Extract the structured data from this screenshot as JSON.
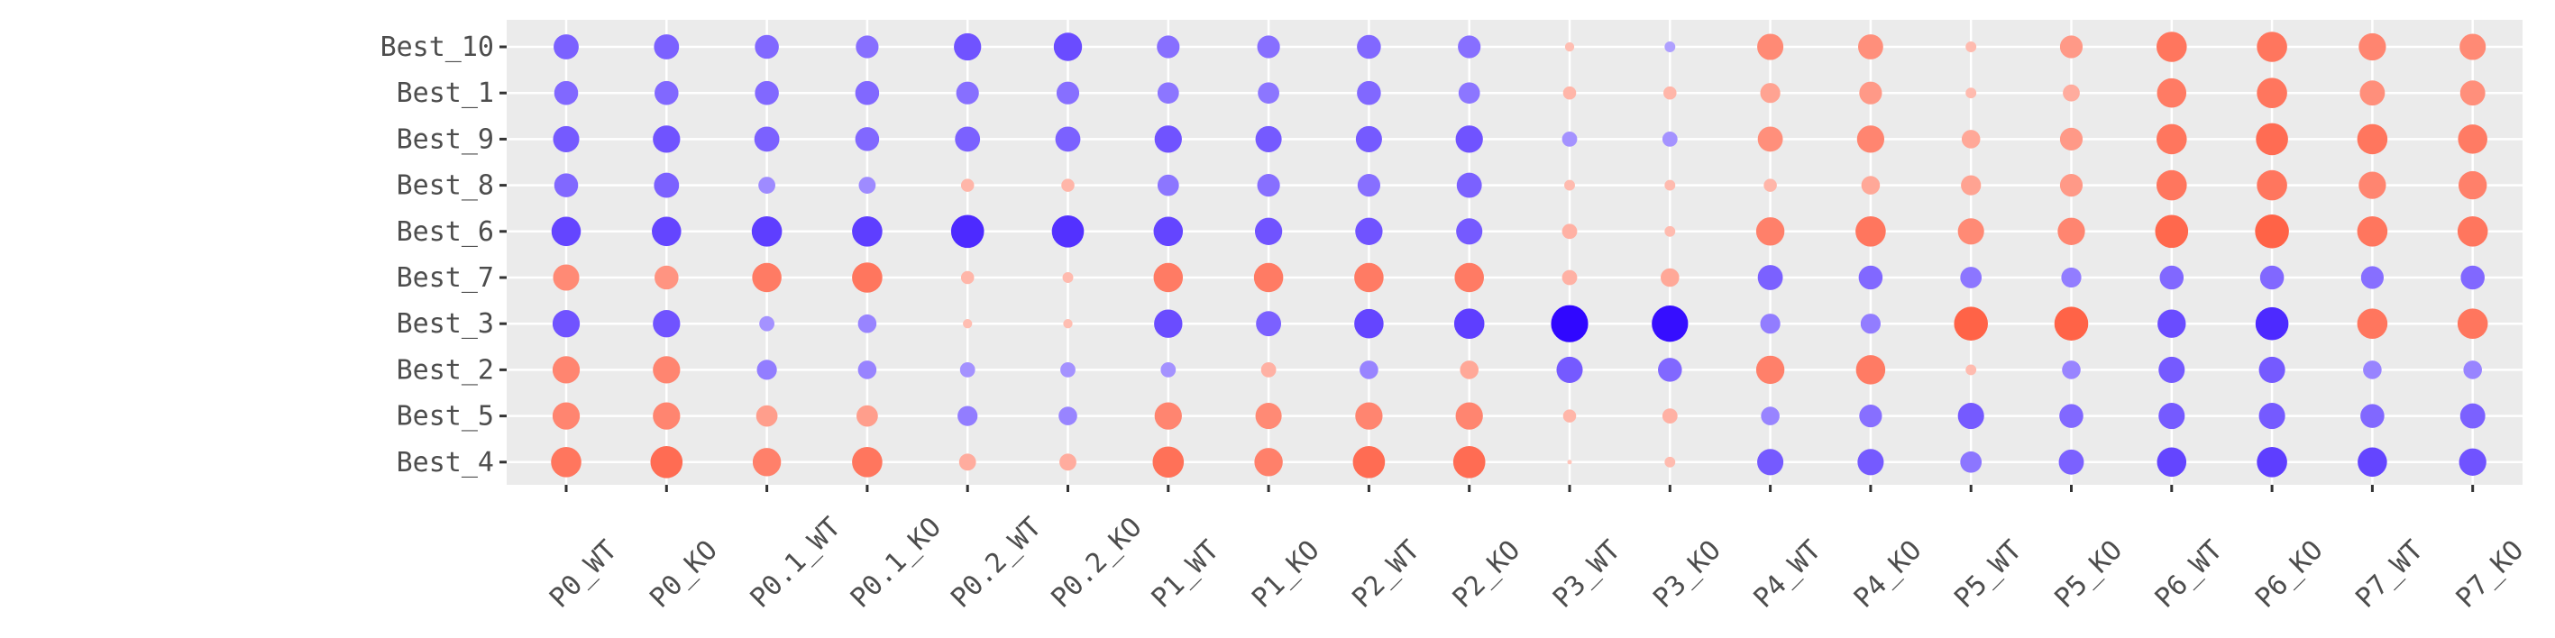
{
  "chart_data": {
    "type": "dot-matrix",
    "title": "",
    "xlabel": "",
    "ylabel": "",
    "x_categories": [
      "P0_WT",
      "P0_KO",
      "P0.1_WT",
      "P0.1_KO",
      "P0.2_WT",
      "P0.2_KO",
      "P1_WT",
      "P1_KO",
      "P2_WT",
      "P2_KO",
      "P3_WT",
      "P3_KO",
      "P4_WT",
      "P4_KO",
      "P5_WT",
      "P5_KO",
      "P6_WT",
      "P6_KO",
      "P7_WT",
      "P7_KO"
    ],
    "y_categories": [
      "Best_10",
      "Best_1",
      "Best_9",
      "Best_8",
      "Best_6",
      "Best_7",
      "Best_3",
      "Best_2",
      "Best_5",
      "Best_4"
    ],
    "color_scale": {
      "low": "#2a00ff",
      "mid": "#ffffff",
      "high": "#ff4a2a",
      "domain": [
        -2.5,
        0,
        2.5
      ]
    },
    "size_note": "dot size encodes magnitude of value",
    "values": [
      [
        -1.1,
        -1.1,
        -1.0,
        -0.9,
        -1.3,
        -1.4,
        -0.9,
        -0.9,
        -1.0,
        -0.9,
        0.15,
        -0.2,
        1.2,
        1.1,
        0.2,
        0.9,
        1.6,
        1.6,
        1.3,
        1.2
      ],
      [
        -1.0,
        -1.0,
        -1.0,
        -1.0,
        -0.9,
        -0.9,
        -0.8,
        -0.8,
        -1.0,
        -0.8,
        0.3,
        0.3,
        0.7,
        0.9,
        0.2,
        0.5,
        1.5,
        1.6,
        1.1,
        1.1
      ],
      [
        -1.2,
        -1.3,
        -1.1,
        -1.0,
        -1.1,
        -1.1,
        -1.3,
        -1.2,
        -1.2,
        -1.3,
        -0.4,
        -0.4,
        1.1,
        1.3,
        0.6,
        0.9,
        1.6,
        1.8,
        1.6,
        1.5
      ],
      [
        -1.0,
        -1.1,
        -0.5,
        -0.5,
        0.3,
        0.3,
        -0.8,
        -0.9,
        -0.9,
        -1.1,
        0.2,
        0.2,
        0.3,
        0.6,
        0.7,
        0.9,
        1.6,
        1.6,
        1.3,
        1.4
      ],
      [
        -1.5,
        -1.5,
        -1.6,
        -1.6,
        -1.9,
        -1.8,
        -1.5,
        -1.3,
        -1.3,
        -1.2,
        0.4,
        0.2,
        1.4,
        1.6,
        1.2,
        1.3,
        1.9,
        2.0,
        1.6,
        1.6
      ],
      [
        1.2,
        1.0,
        1.5,
        1.6,
        0.3,
        0.2,
        1.5,
        1.5,
        1.5,
        1.5,
        0.4,
        0.6,
        -1.1,
        -1.0,
        -0.8,
        -0.7,
        -1.0,
        -1.0,
        -0.9,
        -1.0
      ],
      [
        -1.3,
        -1.3,
        -0.4,
        -0.6,
        0.15,
        0.15,
        -1.4,
        -1.1,
        -1.5,
        -1.6,
        -2.4,
        -2.3,
        -0.7,
        -0.7,
        2.0,
        2.0,
        -1.4,
        -1.9,
        1.6,
        1.6
      ],
      [
        1.3,
        1.3,
        -0.7,
        -0.6,
        -0.4,
        -0.4,
        -0.4,
        0.4,
        -0.6,
        0.6,
        -1.2,
        -1.0,
        1.4,
        1.5,
        0.2,
        -0.6,
        -1.2,
        -1.2,
        -0.6,
        -0.6
      ],
      [
        1.3,
        1.3,
        0.8,
        0.8,
        -0.7,
        -0.6,
        1.3,
        1.2,
        1.3,
        1.3,
        0.3,
        0.4,
        -0.6,
        -0.9,
        -1.2,
        -1.0,
        -1.2,
        -1.2,
        -1.0,
        -1.1
      ],
      [
        1.6,
        1.8,
        1.4,
        1.6,
        0.5,
        0.5,
        1.7,
        1.4,
        1.8,
        1.8,
        0.0,
        0.2,
        -1.2,
        -1.2,
        -0.8,
        -1.1,
        -1.5,
        -1.6,
        -1.5,
        -1.3
      ]
    ]
  }
}
